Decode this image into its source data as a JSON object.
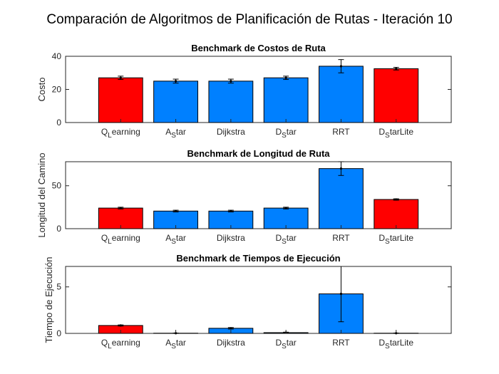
{
  "figure": {
    "title": "Comparación de Algoritmos de Planificación de Rutas - Iteración 10"
  },
  "colors": {
    "red": "#ff0000",
    "blue": "#0080ff"
  },
  "chart_data": [
    {
      "type": "bar",
      "title": "Benchmark de Costos de Ruta",
      "xlabel": "",
      "ylabel": "Costo",
      "categories": [
        {
          "base": "Q",
          "sub": "L",
          "rest": "earning"
        },
        {
          "base": "A",
          "sub": "S",
          "rest": "tar"
        },
        {
          "base": "Dijkstra",
          "sub": "",
          "rest": ""
        },
        {
          "base": "D",
          "sub": "S",
          "rest": "tar"
        },
        {
          "base": "RRT",
          "sub": "",
          "rest": ""
        },
        {
          "base": "D",
          "sub": "S",
          "rest": "tarLite"
        }
      ],
      "values": [
        27,
        25,
        25,
        27,
        34,
        32.5
      ],
      "errors": [
        1.0,
        1.2,
        1.2,
        1.0,
        4.0,
        0.8
      ],
      "bar_colors": [
        "red",
        "blue",
        "blue",
        "blue",
        "blue",
        "red"
      ],
      "ylim": [
        0,
        40
      ],
      "yticks": [
        0,
        20,
        40
      ],
      "grid": false
    },
    {
      "type": "bar",
      "title": "Benchmark de Longitud de Ruta",
      "xlabel": "",
      "ylabel": "Longitud del Camino",
      "categories": [
        {
          "base": "Q",
          "sub": "L",
          "rest": "earning"
        },
        {
          "base": "A",
          "sub": "S",
          "rest": "tar"
        },
        {
          "base": "Dijkstra",
          "sub": "",
          "rest": ""
        },
        {
          "base": "D",
          "sub": "S",
          "rest": "tar"
        },
        {
          "base": "RRT",
          "sub": "",
          "rest": ""
        },
        {
          "base": "D",
          "sub": "S",
          "rest": "tarLite"
        }
      ],
      "values": [
        24,
        20.5,
        20.5,
        24,
        70,
        34
      ],
      "errors": [
        1.0,
        1.0,
        1.0,
        1.0,
        8.0,
        0.8
      ],
      "bar_colors": [
        "red",
        "blue",
        "blue",
        "blue",
        "blue",
        "red"
      ],
      "ylim": [
        0,
        78
      ],
      "yticks": [
        0,
        50
      ],
      "grid": false
    },
    {
      "type": "bar",
      "title": "Benchmark de Tiempos de Ejecución",
      "xlabel": "",
      "ylabel": "Tiempo de Ejecución",
      "categories": [
        {
          "base": "Q",
          "sub": "L",
          "rest": "earning"
        },
        {
          "base": "A",
          "sub": "S",
          "rest": "tar"
        },
        {
          "base": "Dijkstra",
          "sub": "",
          "rest": ""
        },
        {
          "base": "D",
          "sub": "S",
          "rest": "tar"
        },
        {
          "base": "RRT",
          "sub": "",
          "rest": ""
        },
        {
          "base": "D",
          "sub": "S",
          "rest": "tarLite"
        }
      ],
      "values": [
        0.85,
        0.02,
        0.55,
        0.08,
        4.25,
        0.02
      ],
      "errors": [
        0.06,
        0.02,
        0.08,
        0.05,
        3.0,
        0.02
      ],
      "bar_colors": [
        "red",
        "blue",
        "blue",
        "blue",
        "blue",
        "red"
      ],
      "ylim": [
        0,
        7.2
      ],
      "yticks": [
        0,
        5
      ],
      "grid": false
    }
  ]
}
